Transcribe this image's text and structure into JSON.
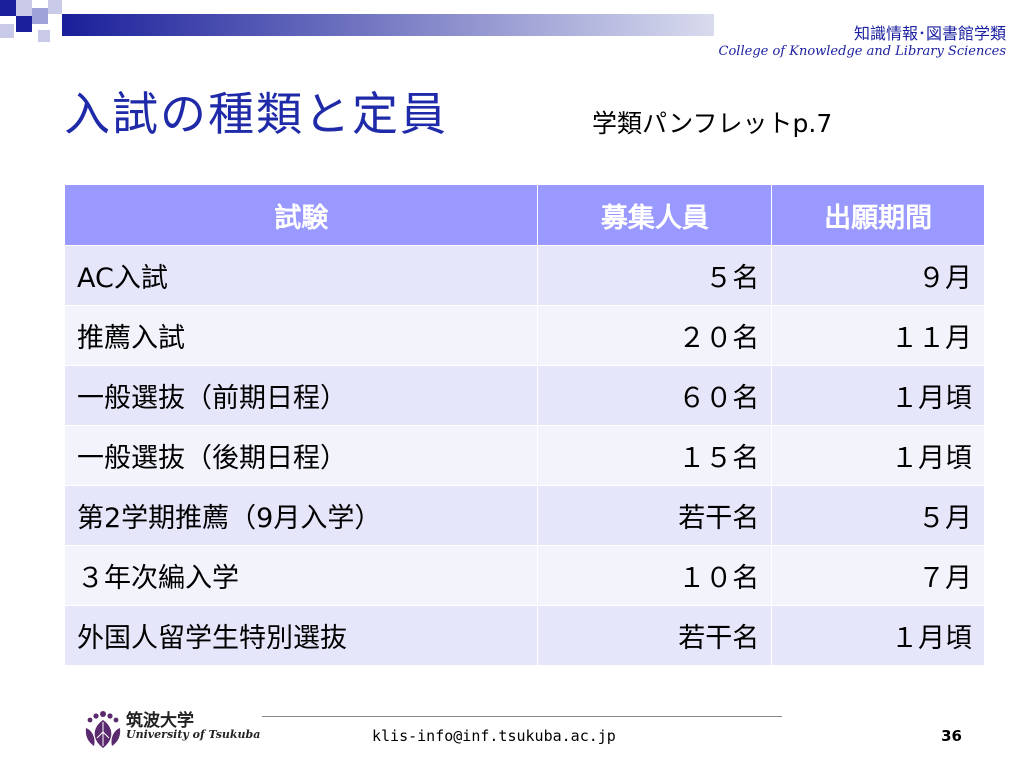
{
  "header": {
    "college_jp": "知識情報･図書館学類",
    "college_en": "College of Knowledge and Library Sciences"
  },
  "slide": {
    "title": "入試の種類と定員",
    "subtitle": "学類パンフレットp.7"
  },
  "table": {
    "headers": [
      "試験",
      "募集人員",
      "出願期間"
    ],
    "rows": [
      [
        "AC入試",
        "５名",
        "９月"
      ],
      [
        "推薦入試",
        "２０名",
        "１１月"
      ],
      [
        "一般選抜（前期日程）",
        "６０名",
        "１月頃"
      ],
      [
        "一般選抜（後期日程）",
        "１５名",
        "１月頃"
      ],
      [
        "第2学期推薦（9月入学）",
        "若干名",
        "５月"
      ],
      [
        "３年次編入学",
        "１０名",
        "７月"
      ],
      [
        "外国人留学生特別選抜",
        "若干名",
        "１月頃"
      ]
    ]
  },
  "footer": {
    "logo_jp": "筑波大学",
    "logo_en": "University of Tsukuba",
    "email": "klis-info@inf.tsukuba.ac.jp",
    "page_number": "36"
  },
  "colors": {
    "accent": "#1f2aa8",
    "table_header": "#9999ff",
    "row_odd": "#e6e6fa",
    "row_even": "#f3f3fc"
  }
}
